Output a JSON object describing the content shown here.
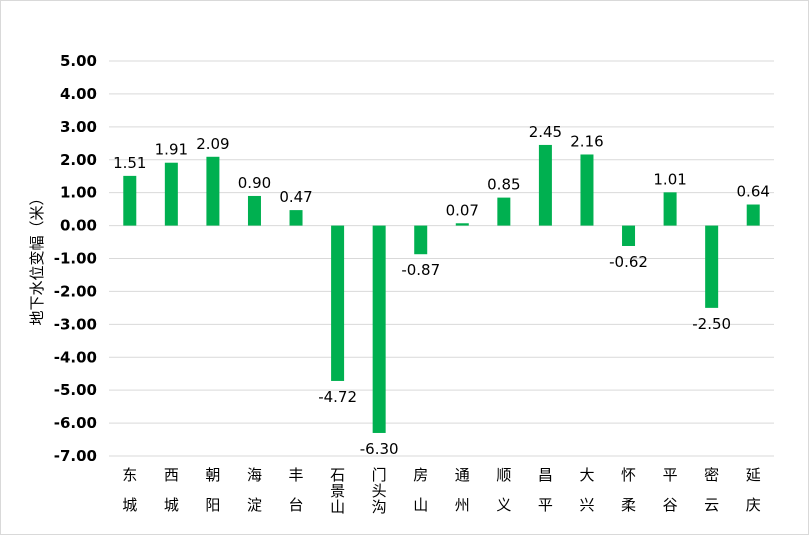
{
  "chart_data": {
    "type": "bar",
    "categories": [
      "东城",
      "西城",
      "朝阳",
      "海淀",
      "丰台",
      "石景山",
      "门头沟",
      "房山",
      "通州",
      "顺义",
      "昌平",
      "大兴",
      "怀柔",
      "平谷",
      "密云",
      "延庆"
    ],
    "values": [
      1.51,
      1.91,
      2.09,
      0.9,
      0.47,
      -4.72,
      -6.3,
      -0.87,
      0.07,
      0.85,
      2.45,
      2.16,
      -0.62,
      1.01,
      -2.5,
      0.64
    ],
    "data_labels": [
      "1.51",
      "1.91",
      "2.09",
      "0.90",
      "0.47",
      "-4.72",
      "-6.30",
      "-0.87",
      "0.07",
      "0.85",
      "2.45",
      "2.16",
      "-0.62",
      "1.01",
      "-2.50",
      "0.64"
    ],
    "title": "",
    "xlabel": "",
    "ylabel": "地下水位变幅（米）",
    "ylim": [
      -7.0,
      5.0
    ],
    "yticks": [
      "5.00",
      "4.00",
      "3.00",
      "2.00",
      "1.00",
      "0.00",
      "-1.00",
      "-2.00",
      "-3.00",
      "-4.00",
      "-5.00",
      "-6.00",
      "-7.00"
    ],
    "grid": true,
    "legend": "none",
    "bar_color": "#00b050",
    "grid_color": "#d9d9d9"
  }
}
